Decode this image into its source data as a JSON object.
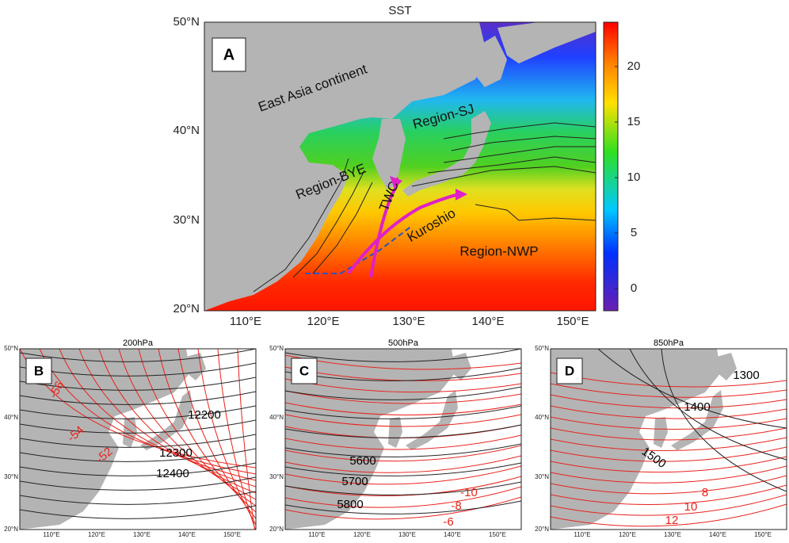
{
  "top": {
    "title": "SST",
    "panel": "A",
    "lat_labels": [
      "50°N",
      "40°N",
      "30°N",
      "20°N"
    ],
    "lon_labels": [
      "110°E",
      "120°E",
      "130°E",
      "140°E",
      "150°E"
    ],
    "colorbar": {
      "lim": [
        -2,
        24
      ],
      "ticks": [
        0,
        5,
        10,
        15,
        20
      ]
    },
    "labels": [
      "East Asia continent",
      "Region-SJ",
      "Region-BYE",
      "TWC",
      "Kuroshio",
      "Region-NWP"
    ]
  },
  "bottom_axes": {
    "lat_labels": [
      "50°N",
      "40°N",
      "30°N",
      "20°N"
    ],
    "lon_labels": [
      "110°E",
      "120°E",
      "130°E",
      "140°E",
      "150°E"
    ]
  },
  "panels": [
    {
      "panel": "B",
      "title": "200hPa",
      "labels": [
        "-56",
        "-54",
        "-52",
        "12200",
        "12300",
        "12400"
      ]
    },
    {
      "panel": "C",
      "title": "500hPa",
      "labels": [
        "5600",
        "5700",
        "5800",
        "-10",
        "-8",
        "-6"
      ]
    },
    {
      "panel": "D",
      "title": "850hPa",
      "labels": [
        "1300",
        "1400",
        "1500",
        "8",
        "10",
        "12"
      ]
    }
  ]
}
